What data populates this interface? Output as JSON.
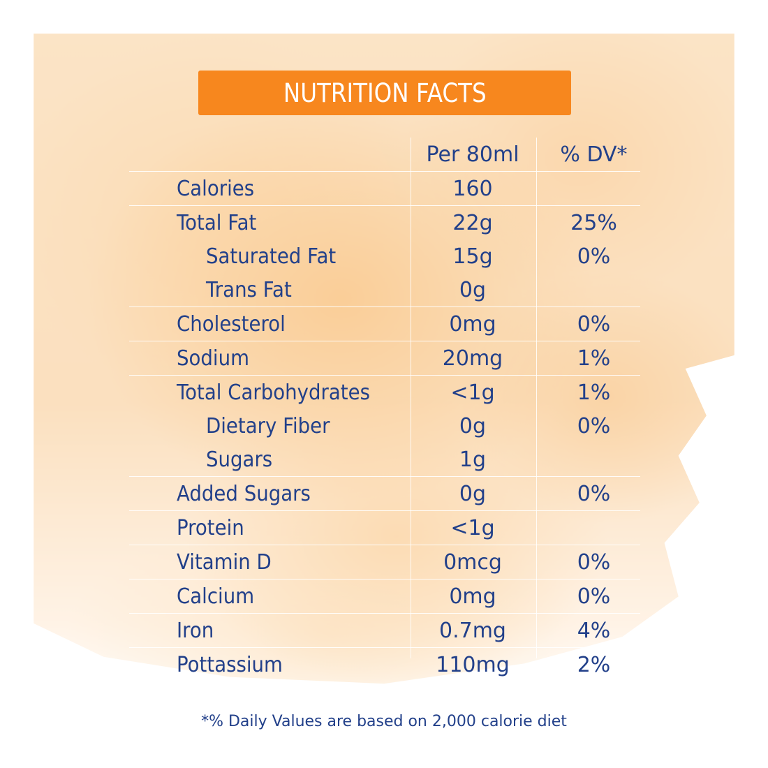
{
  "title": "NUTRITION FACTS",
  "header": {
    "amount": "Per 80ml",
    "dv": "% DV*"
  },
  "rows": [
    {
      "label": "Calories",
      "amount": "160",
      "dv": "",
      "indent": false,
      "line": true
    },
    {
      "label": "Total Fat",
      "amount": "22g",
      "dv": "25%",
      "indent": false,
      "line": true
    },
    {
      "label": "Saturated Fat",
      "amount": "15g",
      "dv": "0%",
      "indent": true,
      "line": false
    },
    {
      "label": "Trans Fat",
      "amount": "0g",
      "dv": "",
      "indent": true,
      "line": false
    },
    {
      "label": "Cholesterol",
      "amount": "0mg",
      "dv": "0%",
      "indent": false,
      "line": true
    },
    {
      "label": "Sodium",
      "amount": "20mg",
      "dv": "1%",
      "indent": false,
      "line": true
    },
    {
      "label": "Total Carbohydrates",
      "amount": "<1g",
      "dv": "1%",
      "indent": false,
      "line": true
    },
    {
      "label": "Dietary Fiber",
      "amount": "0g",
      "dv": "0%",
      "indent": true,
      "line": false
    },
    {
      "label": "Sugars",
      "amount": "1g",
      "dv": "",
      "indent": true,
      "line": false
    },
    {
      "label": "Added Sugars",
      "amount": "0g",
      "dv": "0%",
      "indent": false,
      "line": true
    },
    {
      "label": "Protein",
      "amount": "<1g",
      "dv": "",
      "indent": false,
      "line": true
    },
    {
      "label": "Vitamin D",
      "amount": "0mcg",
      "dv": "0%",
      "indent": false,
      "line": true
    },
    {
      "label": "Calcium",
      "amount": "0mg",
      "dv": "0%",
      "indent": false,
      "line": true
    },
    {
      "label": "Iron",
      "amount": "0.7mg",
      "dv": "4%",
      "indent": false,
      "line": true
    },
    {
      "label": "Pottassium",
      "amount": "110mg",
      "dv": "2%",
      "indent": false,
      "line": true
    }
  ],
  "footnote": "*% Daily Values are based on 2,000 calorie diet",
  "colors": {
    "accent": "#f7871e",
    "text": "#22408a",
    "background_wash": "#fbe0bf"
  }
}
